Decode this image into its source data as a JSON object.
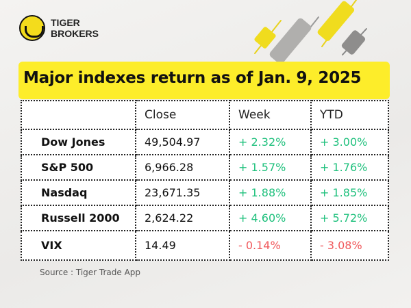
{
  "brand": {
    "line1": "TIGER",
    "line2": "BROKERS"
  },
  "title": "Major indexes return as of Jan. 9, 2025",
  "table": {
    "headers": [
      "",
      "Close",
      "Week",
      "YTD"
    ],
    "rows": [
      {
        "name": "Dow Jones",
        "close": "49,504.97",
        "week": "+ 2.32%",
        "ytd": "+ 3.00%"
      },
      {
        "name": "S&P 500",
        "close": "6,966.28",
        "week": "+ 1.57%",
        "ytd": "+ 1.76%"
      },
      {
        "name": "Nasdaq",
        "close": "23,671.35",
        "week": "+ 1.88%",
        "ytd": "+ 1.85%"
      },
      {
        "name": "Russell 2000",
        "close": "2,624.22",
        "week": "+ 4.60%",
        "ytd": "+ 5.72%"
      },
      {
        "name": "VIX",
        "close": "14.49",
        "week": "- 0.14%",
        "ytd": "- 3.08%"
      }
    ]
  },
  "source": "Source : Tiger Trade App",
  "colors": {
    "accent": "#fded2a",
    "up": "#1ec07c",
    "down": "#f0575a"
  }
}
